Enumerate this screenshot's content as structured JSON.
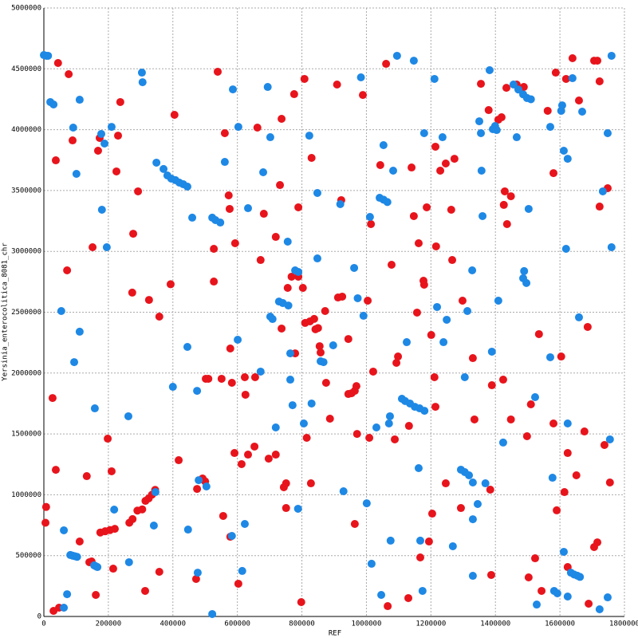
{
  "chart_data": {
    "type": "scatter",
    "xlabel": "REF",
    "ylabel": "Yersinia_enterocolitica_8081_chr",
    "xlim": [
      0,
      1800000
    ],
    "ylim": [
      0,
      5000000
    ],
    "xticks": [
      0,
      200000,
      400000,
      600000,
      800000,
      1000000,
      1200000,
      1400000,
      1600000,
      1800000
    ],
    "yticks": [
      0,
      500000,
      1000000,
      1500000,
      2000000,
      2500000,
      3000000,
      3500000,
      4000000,
      4500000,
      5000000
    ],
    "grid": true,
    "series": [
      {
        "color": "#e8141c",
        "x": [
          5000,
          7000,
          30000,
          47000,
          27000,
          37000,
          44000,
          77000,
          89000,
          37000,
          72000,
          111000,
          133000,
          141000,
          148000,
          161000,
          151000,
          168000,
          173000,
          237000,
          225000,
          230000,
          198000,
          210000,
          215000,
          175000,
          190000,
          205000,
          220000,
          265000,
          275000,
          290000,
          305000,
          315000,
          325000,
          335000,
          345000,
          277000,
          292000,
          274000,
          326000,
          358000,
          358000,
          314000,
          393000,
          405000,
          418000,
          472000,
          475000,
          492000,
          500000,
          502000,
          510000,
          527000,
          539000,
          527000,
          551000,
          556000,
          561000,
          573000,
          576000,
          578000,
          583000,
          578000,
          593000,
          591000,
          603000,
          613000,
          623000,
          625000,
          633000,
          653000,
          655000,
          662000,
          672000,
          682000,
          697000,
          719000,
          719000,
          732000,
          737000,
          737000,
          744000,
          751000,
          751000,
          756000,
          768000,
          776000,
          779000,
          789000,
          789000,
          798000,
          808000,
          803000,
          810000,
          825000,
          838000,
          842000,
          850000,
          830000,
          828000,
          815000,
          855000,
          858000,
          872000,
          875000,
          887000,
          909000,
          912000,
          925000,
          922000,
          944000,
          944000,
          954000,
          964000,
          969000,
          971000,
          964000,
          989000,
          1004000,
          1009000,
          1014000,
          1021000,
          1043000,
          1061000,
          1066000,
          1078000,
          1088000,
          1093000,
          1098000,
          1130000,
          1132000,
          1140000,
          1147000,
          1157000,
          1162000,
          1167000,
          1177000,
          1179000,
          1187000,
          1194000,
          1201000,
          1204000,
          1211000,
          1214000,
          1214000,
          1216000,
          1229000,
          1246000,
          1246000,
          1263000,
          1273000,
          1266000,
          1298000,
          1293000,
          1330000,
          1335000,
          1355000,
          1379000,
          1384000,
          1389000,
          1387000,
          1409000,
          1419000,
          1424000,
          1426000,
          1429000,
          1434000,
          1436000,
          1448000,
          1448000,
          1466000,
          1488000,
          1498000,
          1503000,
          1510000,
          1523000,
          1535000,
          1543000,
          1562000,
          1580000,
          1580000,
          1587000,
          1590000,
          1604000,
          1614000,
          1619000,
          1624000,
          1624000,
          1639000,
          1651000,
          1659000,
          1676000,
          1686000,
          1689000,
          1706000,
          1716000,
          1706000,
          1716000,
          1723000,
          1723000,
          1738000,
          1748000,
          1755000
        ],
        "values": [
          770000,
          900000,
          46000,
          72000,
          1795000,
          1205000,
          4548000,
          4456000,
          3912000,
          3748000,
          2844000,
          616000,
          1153000,
          446000,
          452000,
          177000,
          3034000,
          3827000,
          3932000,
          4227000,
          3657000,
          3951000,
          1461000,
          1193000,
          393000,
          690000,
          700000,
          710000,
          720000,
          770000,
          800000,
          870000,
          880000,
          950000,
          970000,
          1000000,
          1040000,
          3145000,
          3493000,
          2661000,
          2601000,
          2464000,
          367000,
          210000,
          2730000,
          4122000,
          1284000,
          308000,
          1048000,
          1134000,
          1110000,
          1953000,
          1953000,
          3021000,
          4476000,
          2752000,
          1953000,
          826000,
          3971000,
          3460000,
          3349000,
          2202000,
          1920000,
          655000,
          3067000,
          1343000,
          269000,
          1252000,
          1966000,
          1822000,
          1330000,
          1396000,
          1966000,
          4017000,
          2929000,
          3309000,
          1297000,
          1330000,
          3119000,
          3545000,
          4089000,
          2366000,
          1062000,
          1094000,
          891000,
          2700000,
          2792000,
          4292000,
          2162000,
          3362000,
          2792000,
          118000,
          4417000,
          2700000,
          2412000,
          2425000,
          2445000,
          2360000,
          2370000,
          3768000,
          1094000,
          1468000,
          2221000,
          2169000,
          2510000,
          1920000,
          1625000,
          4371000,
          2621000,
          2628000,
          3421000,
          2280000,
          1828000,
          1834000,
          1854000,
          1893000,
          1500000,
          760000,
          4285000,
          2595000,
          1468000,
          3224000,
          2012000,
          3709000,
          4541000,
          85000,
          2890000,
          1455000,
          2084000,
          2136000,
          151000,
          1566000,
          3689000,
          3290000,
          2497000,
          3067000,
          485000,
          2759000,
          2726000,
          3362000,
          616000,
          2313000,
          845000,
          1966000,
          3860000,
          1723000,
          3041000,
          3663000,
          3722000,
          1094000,
          3342000,
          3761000,
          2929000,
          2595000,
          891000,
          2123000,
          1619000,
          4377000,
          4161000,
          1042000,
          1900000,
          341000,
          4082000,
          4102000,
          1946000,
          3382000,
          3493000,
          4344000,
          3224000,
          1619000,
          3453000,
          4371000,
          4351000,
          1481000,
          321000,
          1743000,
          478000,
          2320000,
          210000,
          4155000,
          3643000,
          1586000,
          4469000,
          872000,
          2136000,
          1022000,
          4417000,
          1343000,
          406000,
          4587000,
          1160000,
          4240000,
          1520000,
          2379000,
          105000,
          570000,
          609000,
          4567000,
          4567000,
          4397000,
          3368000,
          1409000,
          3519000,
          1101000
        ]
      },
      {
        "color": "#1e88e5",
        "x": [
          0,
          8000,
          13000,
          20000,
          30000,
          91000,
          101000,
          54000,
          111000,
          94000,
          62000,
          72000,
          62000,
          82000,
          89000,
          96000,
          103000,
          111000,
          158000,
          156000,
          161000,
          166000,
          178000,
          180000,
          188000,
          195000,
          210000,
          218000,
          262000,
          264000,
          304000,
          306000,
          341000,
          346000,
          349000,
          371000,
          383000,
          395000,
          408000,
          420000,
          432000,
          445000,
          400000,
          447000,
          445000,
          460000,
          475000,
          480000,
          477000,
          504000,
          522000,
          522000,
          532000,
          547000,
          561000,
          586000,
          583000,
          601000,
          603000,
          615000,
          623000,
          633000,
          672000,
          680000,
          694000,
          702000,
          702000,
          709000,
          729000,
          741000,
          758000,
          719000,
          756000,
          764000,
          764000,
          771000,
          779000,
          789000,
          788000,
          806000,
          823000,
          830000,
          848000,
          848000,
          858000,
          867000,
          897000,
          919000,
          929000,
          962000,
          973000,
          983000,
          991000,
          1001000,
          1016000,
          1011000,
          1031000,
          1041000,
          1053000,
          1065000,
          1046000,
          1053000,
          1075000,
          1070000,
          1073000,
          1083000,
          1095000,
          1110000,
          1120000,
          1135000,
          1125000,
          1147000,
          1150000,
          1165000,
          1180000,
          1162000,
          1167000,
          1174000,
          1179000,
          1211000,
          1219000,
          1236000,
          1239000,
          1249000,
          1268000,
          1293000,
          1305000,
          1318000,
          1330000,
          1305000,
          1313000,
          1328000,
          1330000,
          1330000,
          1345000,
          1350000,
          1355000,
          1357000,
          1360000,
          1369000,
          1382000,
          1389000,
          1392000,
          1399000,
          1404000,
          1409000,
          1424000,
          1456000,
          1471000,
          1486000,
          1498000,
          1510000,
          1466000,
          1486000,
          1489000,
          1496000,
          1503000,
          1523000,
          1528000,
          1570000,
          1570000,
          1577000,
          1582000,
          1592000,
          1604000,
          1607000,
          1612000,
          1612000,
          1619000,
          1624000,
          1624000,
          1624000,
          1634000,
          1644000,
          1654000,
          1662000,
          1639000,
          1659000,
          1669000,
          1723000,
          1733000,
          1748000,
          1748000,
          1755000,
          1760000,
          1760000
        ],
        "values": [
          4613000,
          4607000,
          4607000,
          4227000,
          4207000,
          4017000,
          3637000,
          2510000,
          2340000,
          2090000,
          708000,
          183000,
          72000,
          505000,
          500000,
          495000,
          490000,
          4246000,
          1710000,
          420000,
          413000,
          406000,
          3965000,
          3342000,
          3886000,
          3034000,
          4023000,
          878000,
          1645000,
          446000,
          4469000,
          4390000,
          747000,
          1022000,
          3729000,
          3677000,
          3624000,
          3598000,
          3585000,
          3565000,
          3552000,
          3532000,
          1887000,
          714000,
          2215000,
          3277000,
          1854000,
          1120000,
          360000,
          1068000,
          20000,
          3277000,
          3257000,
          3237000,
          3735000,
          4331000,
          662000,
          2274000,
          4023000,
          374000,
          760000,
          3355000,
          2012000,
          3650000,
          4351000,
          3938000,
          2464000,
          2444000,
          2588000,
          2575000,
          2555000,
          1553000,
          3080000,
          2162000,
          1946000,
          1736000,
          2844000,
          2831000,
          885000,
          1586000,
          3951000,
          1750000,
          3480000,
          2942000,
          2097000,
          2090000,
          2228000,
          3388000,
          1029000,
          2864000,
          2615000,
          4430000,
          2471000,
          930000,
          433000,
          3283000,
          1553000,
          3440000,
          3425000,
          3405000,
          177000,
          3873000,
          623000,
          1586000,
          1645000,
          3663000,
          4607000,
          1789000,
          1770000,
          1750000,
          2254000,
          4567000,
          1723000,
          1710000,
          1690000,
          1219000,
          623000,
          210000,
          3971000,
          4417000,
          2543000,
          3938000,
          2254000,
          2438000,
          577000,
          1206000,
          1186000,
          1160000,
          1101000,
          1966000,
          2510000,
          2844000,
          799000,
          334000,
          924000,
          4069000,
          3971000,
          3663000,
          3290000,
          1094000,
          4489000,
          2176000,
          4004000,
          4030000,
          3997000,
          2595000,
          1429000,
          4371000,
          4330000,
          4290000,
          4260000,
          4250000,
          3938000,
          2779000,
          2838000,
          2740000,
          3349000,
          1802000,
          98000,
          2130000,
          4023000,
          1140000,
          210000,
          190000,
          4155000,
          4200000,
          3827000,
          531000,
          3021000,
          3761000,
          1586000,
          164000,
          360000,
          345000,
          335000,
          325000,
          4423000,
          2458000,
          4148000,
          59000,
          3493000,
          3971000,
          157000,
          1455000,
          4607000,
          3034000
        ]
      }
    ]
  }
}
